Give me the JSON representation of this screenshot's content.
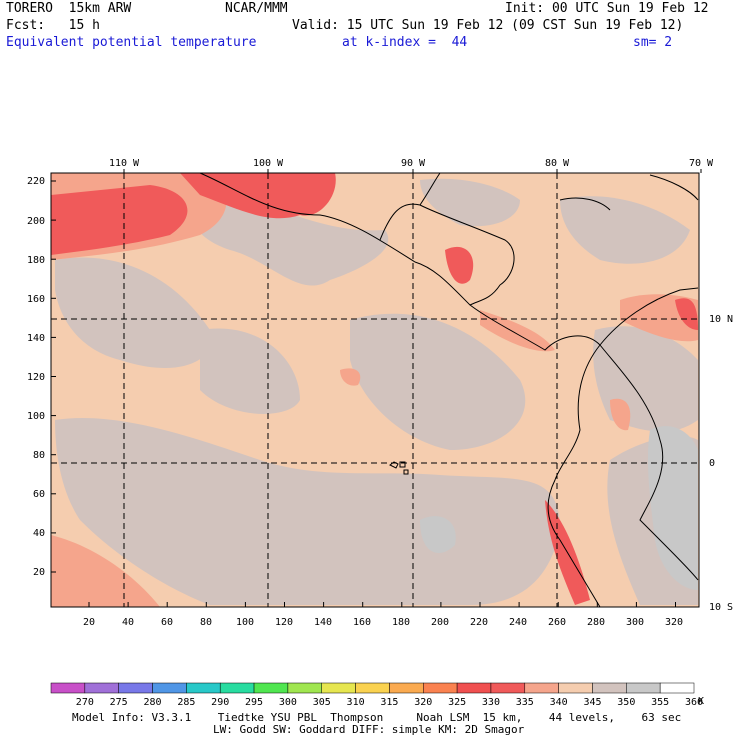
{
  "header": {
    "model": "TORERO  15km ARW",
    "center": "NCAR/MMM",
    "init": "Init: 00 UTC Sun 19 Feb 12",
    "fcst": "Fcst:   15 h",
    "valid": "Valid: 15 UTC Sun 19 Feb 12 (09 CST Sun 19 Feb 12)",
    "field": "Equivalent potential temperature",
    "level": "at k-index =  44",
    "smooth": "sm= 2"
  },
  "map": {
    "lon_labels": [
      "110 W",
      "100 W",
      "90 W",
      "80 W",
      "70 W"
    ],
    "lat_labels": [
      "10 N",
      "0",
      "10 S"
    ],
    "y_ticks": [
      "220",
      "200",
      "180",
      "160",
      "140",
      "120",
      "100",
      "80",
      "60",
      "40",
      "20"
    ],
    "x_ticks": [
      "20",
      "40",
      "60",
      "80",
      "100",
      "120",
      "140",
      "160",
      "180",
      "200",
      "220",
      "240",
      "260",
      "280",
      "300",
      "320"
    ],
    "grid_x": [
      124,
      268,
      413,
      557
    ],
    "grid_y": [
      319,
      463
    ]
  },
  "colorbar": {
    "unit": "K",
    "labels": [
      "270",
      "275",
      "280",
      "285",
      "290",
      "295",
      "300",
      "305",
      "310",
      "315",
      "320",
      "325",
      "330",
      "335",
      "340",
      "345",
      "350",
      "355",
      "360"
    ],
    "colors": [
      "#c850c8",
      "#a070d8",
      "#7878e8",
      "#5096e6",
      "#28c8c8",
      "#28dca0",
      "#50e650",
      "#a0e650",
      "#e6e650",
      "#fad250",
      "#faaa50",
      "#fa8250",
      "#f05050",
      "#f05a5a",
      "#f5a58c",
      "#f5cdaf",
      "#d2c3be",
      "#c8c8c8",
      "#ffffff"
    ]
  },
  "footer": {
    "line1": "Model Info: V3.3.1    Tiedtke YSU PBL  Thompson     Noah LSM  15 km,    44 levels,    63 sec",
    "line2": "LW: Godd SW: Goddard DIFF: simple KM: 2D Smagor"
  }
}
